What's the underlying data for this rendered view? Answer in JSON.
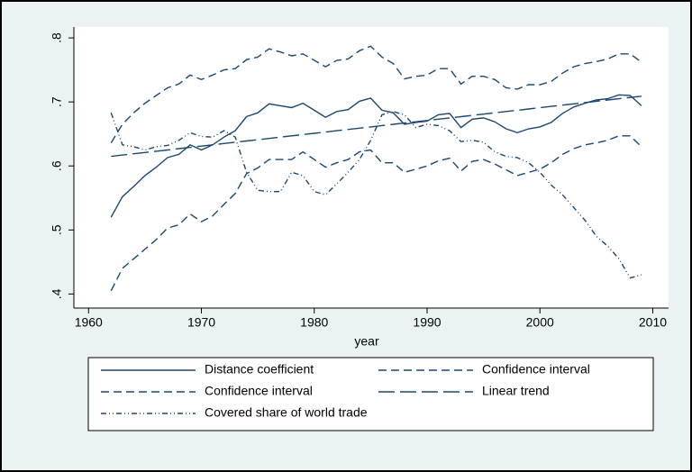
{
  "chart_data": {
    "type": "line",
    "xlabel": "year",
    "x": [
      1962,
      1963,
      1964,
      1965,
      1966,
      1967,
      1968,
      1969,
      1970,
      1971,
      1972,
      1973,
      1974,
      1975,
      1976,
      1977,
      1978,
      1979,
      1980,
      1981,
      1982,
      1983,
      1984,
      1985,
      1986,
      1987,
      1988,
      1989,
      1990,
      1991,
      1992,
      1993,
      1994,
      1995,
      1996,
      1997,
      1998,
      1999,
      2000,
      2001,
      2002,
      2003,
      2004,
      2005,
      2006,
      2007,
      2008,
      2009
    ],
    "xlim": [
      1958.7,
      2011.4
    ],
    "xticks": [
      1960,
      1970,
      1980,
      1990,
      2000,
      2010
    ],
    "ylim": [
      0.378,
      0.817
    ],
    "yticks": [
      {
        "value": 0.4,
        "label": ".4"
      },
      {
        "value": 0.5,
        "label": ".5"
      },
      {
        "value": 0.6,
        "label": ".6"
      },
      {
        "value": 0.7,
        "label": ".7"
      },
      {
        "value": 0.8,
        "label": ".8"
      }
    ],
    "series": [
      {
        "name": "Distance coefficient",
        "color": "#1a476f",
        "dash": "none",
        "values": [
          0.52,
          0.552,
          0.568,
          0.585,
          0.598,
          0.613,
          0.618,
          0.633,
          0.625,
          0.633,
          0.645,
          0.655,
          0.677,
          0.683,
          0.697,
          0.694,
          0.691,
          0.698,
          0.687,
          0.676,
          0.685,
          0.688,
          0.701,
          0.706,
          0.687,
          0.683,
          0.665,
          0.668,
          0.67,
          0.68,
          0.682,
          0.66,
          0.673,
          0.675,
          0.669,
          0.658,
          0.652,
          0.658,
          0.661,
          0.668,
          0.682,
          0.692,
          0.698,
          0.703,
          0.705,
          0.711,
          0.71,
          0.694
        ]
      },
      {
        "name": "Confidence interval",
        "color": "#1a476f",
        "dash": "9 5",
        "values": [
          0.636,
          0.665,
          0.683,
          0.698,
          0.71,
          0.722,
          0.728,
          0.742,
          0.735,
          0.742,
          0.75,
          0.752,
          0.766,
          0.77,
          0.783,
          0.778,
          0.772,
          0.775,
          0.765,
          0.755,
          0.765,
          0.767,
          0.78,
          0.787,
          0.77,
          0.76,
          0.736,
          0.74,
          0.742,
          0.752,
          0.752,
          0.728,
          0.74,
          0.74,
          0.735,
          0.722,
          0.72,
          0.727,
          0.727,
          0.732,
          0.745,
          0.755,
          0.76,
          0.763,
          0.767,
          0.775,
          0.775,
          0.762
        ]
      },
      {
        "name": "Confidence interval",
        "color": "#1a476f",
        "dash": "9 5",
        "values": [
          0.405,
          0.44,
          0.455,
          0.47,
          0.485,
          0.503,
          0.508,
          0.525,
          0.513,
          0.522,
          0.54,
          0.557,
          0.588,
          0.597,
          0.61,
          0.61,
          0.61,
          0.622,
          0.61,
          0.598,
          0.605,
          0.61,
          0.622,
          0.625,
          0.605,
          0.605,
          0.59,
          0.595,
          0.6,
          0.608,
          0.612,
          0.592,
          0.607,
          0.61,
          0.603,
          0.594,
          0.585,
          0.59,
          0.595,
          0.605,
          0.618,
          0.627,
          0.633,
          0.636,
          0.64,
          0.647,
          0.647,
          0.63
        ]
      },
      {
        "name": "Linear trend",
        "color": "#1a476f",
        "dash": "18 6",
        "values": [
          0.615,
          0.617,
          0.619,
          0.621,
          0.623,
          0.625,
          0.627,
          0.629,
          0.631,
          0.633,
          0.635,
          0.637,
          0.639,
          0.641,
          0.643,
          0.645,
          0.647,
          0.649,
          0.651,
          0.653,
          0.655,
          0.657,
          0.659,
          0.661,
          0.663,
          0.665,
          0.667,
          0.669,
          0.671,
          0.673,
          0.675,
          0.677,
          0.679,
          0.681,
          0.683,
          0.685,
          0.687,
          0.689,
          0.691,
          0.693,
          0.695,
          0.697,
          0.699,
          0.701,
          0.703,
          0.705,
          0.707,
          0.709
        ]
      },
      {
        "name": "Covered share of world trade",
        "color": "#1a476f",
        "dash": "6 3 1 3 1 3",
        "values": [
          0.683,
          0.633,
          0.63,
          0.625,
          0.63,
          0.632,
          0.64,
          0.652,
          0.646,
          0.645,
          0.655,
          0.645,
          0.59,
          0.562,
          0.56,
          0.56,
          0.59,
          0.585,
          0.56,
          0.555,
          0.572,
          0.59,
          0.61,
          0.64,
          0.68,
          0.685,
          0.68,
          0.66,
          0.665,
          0.663,
          0.655,
          0.638,
          0.64,
          0.637,
          0.622,
          0.615,
          0.613,
          0.605,
          0.59,
          0.57,
          0.555,
          0.535,
          0.515,
          0.49,
          0.475,
          0.455,
          0.425,
          0.43
        ]
      }
    ]
  }
}
